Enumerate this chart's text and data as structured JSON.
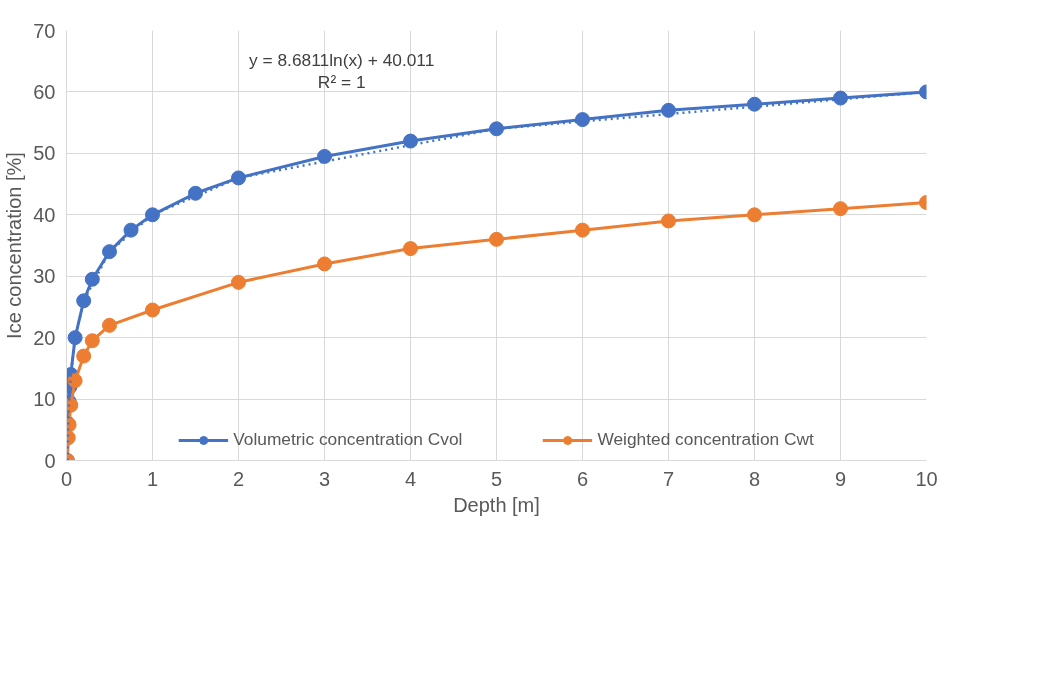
{
  "chart_data": {
    "type": "line",
    "xlabel": "Depth [m]",
    "ylabel": "Ice concentration [%]",
    "xlim": [
      0,
      10
    ],
    "ylim": [
      0,
      70
    ],
    "xticks": [
      0,
      1,
      2,
      3,
      4,
      5,
      6,
      7,
      8,
      9,
      10
    ],
    "yticks": [
      0,
      10,
      20,
      30,
      40,
      50,
      60,
      70
    ],
    "grid": true,
    "legend": "bottom",
    "marker": "circle",
    "annotations": [
      "y = 8.6811ln(x) + 40.011",
      "R² = 1"
    ],
    "series": [
      {
        "name": "Volumetric concentration Cvol",
        "color": "#4472c4",
        "x": [
          0.01,
          0.02,
          0.03,
          0.04,
          0.05,
          0.1,
          0.2,
          0.3,
          0.5,
          0.75,
          1,
          1.5,
          2,
          3,
          4,
          5,
          6,
          7,
          8,
          9,
          10
        ],
        "values": [
          0,
          6,
          9.6,
          12,
          14,
          20,
          26,
          29.5,
          34,
          37.5,
          40,
          43.5,
          46,
          49.5,
          52,
          54,
          55.5,
          57,
          58,
          59,
          60
        ]
      },
      {
        "name": "Weighted concentration Cwt",
        "color": "#ed7d31",
        "x": [
          0.01,
          0.02,
          0.03,
          0.05,
          0.1,
          0.2,
          0.3,
          0.5,
          1,
          2,
          3,
          4,
          5,
          6,
          7,
          8,
          9,
          10
        ],
        "values": [
          0,
          3.7,
          5.8,
          9,
          13,
          17,
          19.5,
          22,
          24.5,
          29,
          32,
          34.5,
          36,
          37.5,
          39,
          40,
          41,
          42
        ]
      },
      {
        "color": "#4472c4",
        "marker": "none",
        "line_style": "dotted",
        "x": [
          0.01,
          0.02,
          0.03,
          0.05,
          0.1,
          0.2,
          0.5,
          1,
          2,
          5,
          10
        ],
        "values": [
          0,
          6,
          9.6,
          14,
          20,
          26,
          34,
          40,
          46,
          54,
          60
        ]
      }
    ]
  }
}
